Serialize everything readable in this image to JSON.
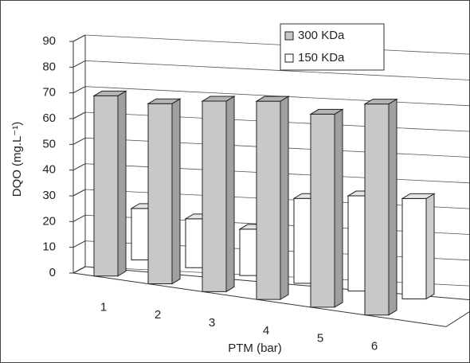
{
  "chart_data": {
    "type": "bar3d",
    "x_label": "PTM (bar)",
    "y_label": "DQO (mg.L⁻¹)",
    "categories": [
      "1",
      "2",
      "3",
      "4",
      "5",
      "6"
    ],
    "series": [
      {
        "name": "300 KDa",
        "color": "#c8c8c8",
        "values": [
          70,
          70,
          74,
          77,
          75,
          82
        ]
      },
      {
        "name": "150 KDa",
        "color": "#ffffff",
        "values": [
          20,
          19,
          18,
          33,
          37,
          39
        ]
      }
    ],
    "ylim": [
      0,
      90
    ],
    "yticks": [
      0,
      10,
      20,
      30,
      40,
      50,
      60,
      70,
      80,
      90
    ],
    "grid": true,
    "legend": "top-right"
  }
}
